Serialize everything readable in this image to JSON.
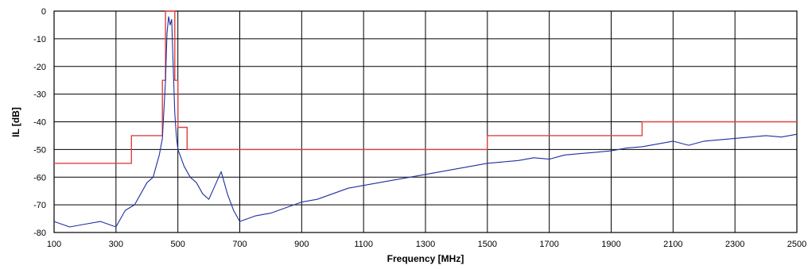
{
  "chart_data": {
    "type": "line",
    "title": "",
    "xlabel": "Frequency [MHz]",
    "ylabel": "IL [dB]",
    "xlim": [
      100,
      2500
    ],
    "ylim": [
      -80,
      0
    ],
    "x_ticks": [
      100,
      300,
      500,
      700,
      900,
      1100,
      1300,
      1500,
      1700,
      1900,
      2100,
      2300,
      2500
    ],
    "x_tick_labels": [
      "100",
      "300",
      "500",
      "700",
      "900",
      "1100",
      "1300",
      "1500",
      "1700",
      "1900",
      "2100",
      "2300",
      "2500"
    ],
    "y_ticks": [
      0,
      -10,
      -20,
      -30,
      -40,
      -50,
      -60,
      -70,
      -80
    ],
    "y_tick_labels": [
      "0",
      "-10",
      "-20",
      "-30",
      "-40",
      "-50",
      "-60",
      "-70",
      "-80"
    ],
    "grid": true,
    "legend": "none",
    "series": [
      {
        "role": "specification-mask",
        "color": "#e04040",
        "style": "step",
        "x": [
          100,
          350,
          350,
          450,
          450,
          460,
          460,
          490,
          490,
          500,
          500,
          515,
          515,
          530,
          530,
          1500,
          1500,
          2000,
          2000,
          2500
        ],
        "y": [
          -55,
          -55,
          -45,
          -45,
          -25,
          -25,
          0,
          0,
          -25,
          -25,
          -42,
          -42,
          -42,
          -42,
          -50,
          -50,
          -45,
          -45,
          -40,
          -40
        ]
      },
      {
        "role": "measured-response",
        "color": "#1f2fa0",
        "style": "line",
        "x": [
          100,
          150,
          200,
          250,
          300,
          330,
          360,
          380,
          400,
          420,
          440,
          450,
          460,
          465,
          470,
          475,
          480,
          485,
          490,
          495,
          500,
          510,
          520,
          540,
          560,
          580,
          600,
          620,
          640,
          660,
          680,
          700,
          750,
          800,
          850,
          900,
          950,
          1000,
          1050,
          1100,
          1150,
          1200,
          1250,
          1300,
          1350,
          1400,
          1450,
          1500,
          1550,
          1600,
          1650,
          1700,
          1750,
          1800,
          1850,
          1900,
          1950,
          2000,
          2050,
          2100,
          2150,
          2200,
          2250,
          2300,
          2350,
          2400,
          2450,
          2500
        ],
        "y": [
          -76,
          -78,
          -77,
          -76,
          -78,
          -72,
          -70,
          -66,
          -62,
          -60,
          -52,
          -46,
          -25,
          -8,
          -2,
          -5,
          -3,
          -20,
          -37,
          -45,
          -50,
          -53,
          -56,
          -60,
          -62,
          -66,
          -68,
          -63,
          -58,
          -66,
          -72,
          -76,
          -74,
          -73,
          -71,
          -69,
          -68,
          -66,
          -64,
          -63,
          -62,
          -61,
          -60,
          -59,
          -58,
          -57,
          -56,
          -55,
          -54.5,
          -54,
          -53,
          -53.5,
          -52,
          -51.5,
          -51,
          -50.5,
          -49.5,
          -49,
          -48,
          -47,
          -48.5,
          -47,
          -46.5,
          -46,
          -45.5,
          -45,
          -45.5,
          -44.5
        ]
      }
    ]
  }
}
